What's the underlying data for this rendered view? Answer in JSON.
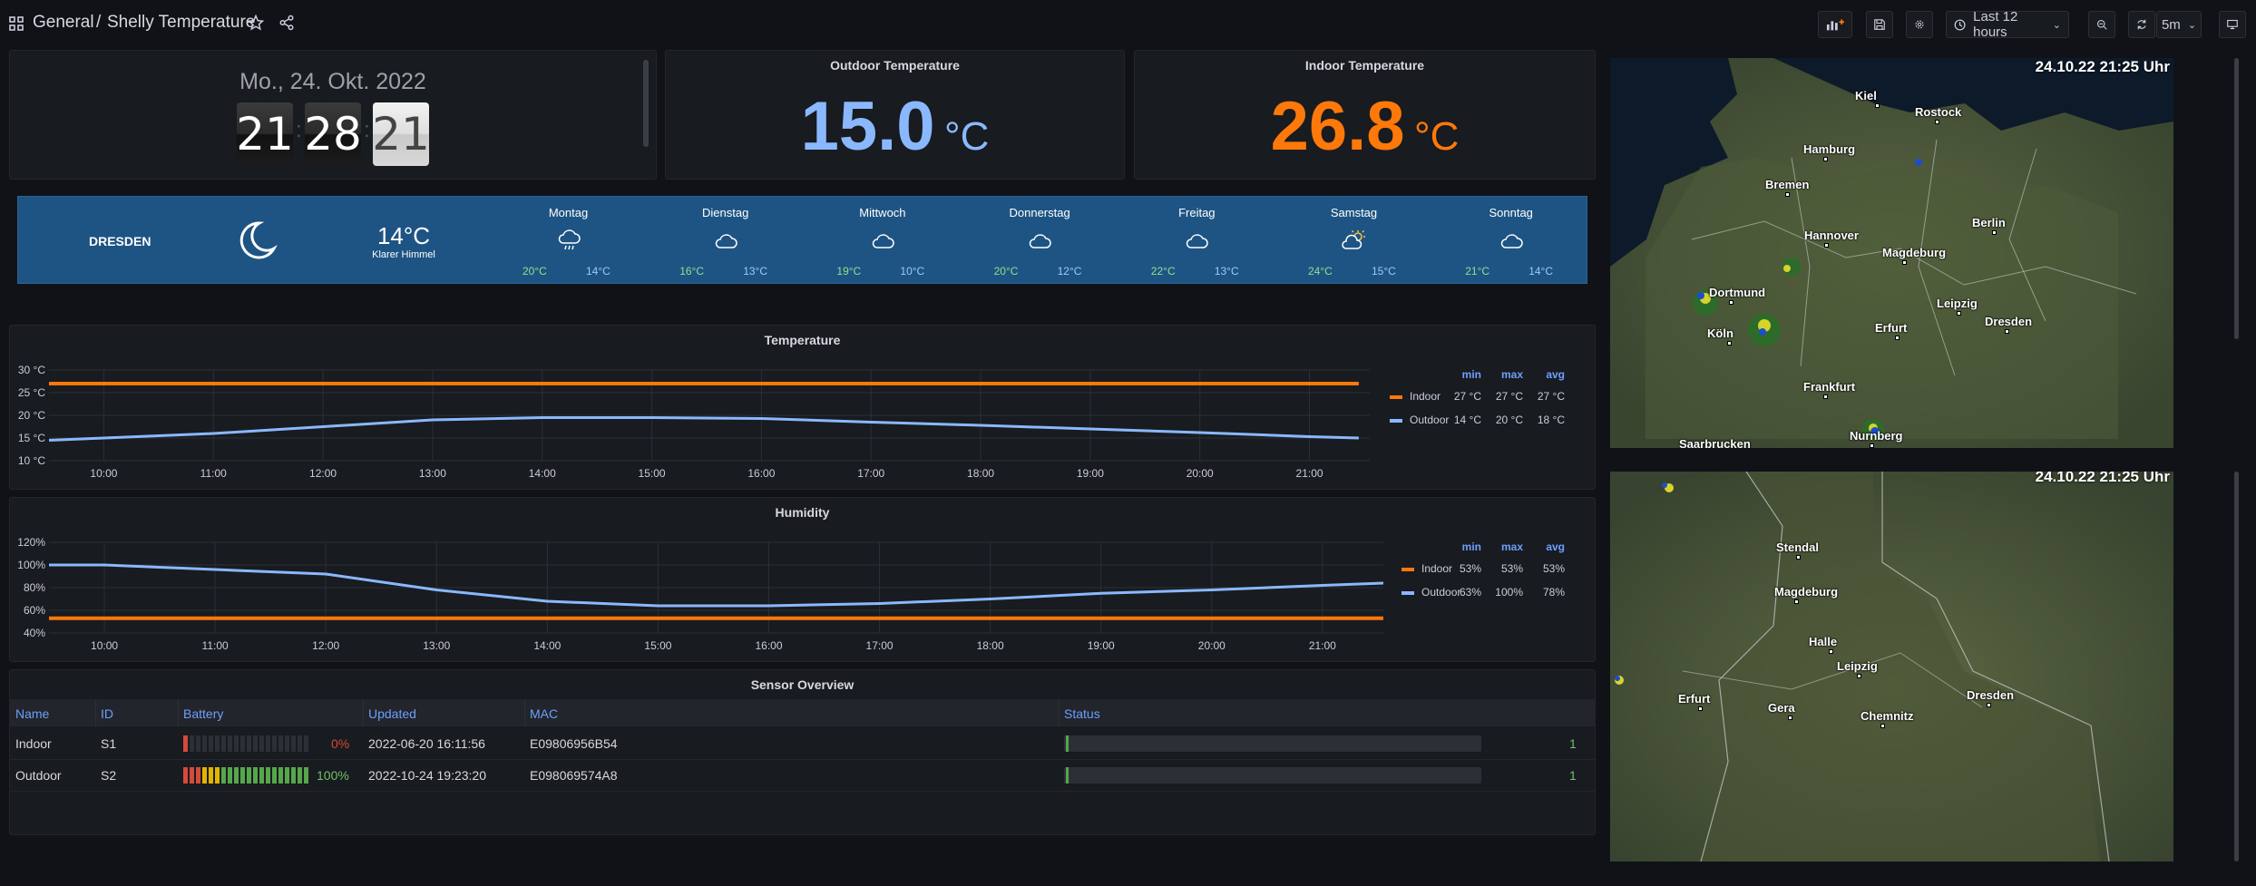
{
  "header": {
    "breadcrumb_folder": "General",
    "breadcrumb_sep": "/",
    "dashboard_title": "Shelly Temperature",
    "time_range": "Last 12 hours",
    "refresh": "5m"
  },
  "clock": {
    "date": "Mo., 24. Okt. 2022",
    "hours": "21",
    "minutes": "28",
    "seconds": "21",
    "sep": ":"
  },
  "outdoor": {
    "title": "Outdoor Temperature",
    "value": "15.0",
    "unit": "°C",
    "color": "#8ab8ff"
  },
  "indoor": {
    "title": "Indoor Temperature",
    "value": "26.8",
    "unit": "°C",
    "color": "#ff780a"
  },
  "weather": {
    "city": "DRESDEN",
    "current_temp": "14°C",
    "current_desc": "Klarer Himmel",
    "current_icon": "moon-icon",
    "days": [
      {
        "name": "Montag",
        "icon": "cloud-rain-icon",
        "hi": "20°C",
        "lo": "14°C"
      },
      {
        "name": "Dienstag",
        "icon": "cloud-icon",
        "hi": "16°C",
        "lo": "13°C"
      },
      {
        "name": "Mittwoch",
        "icon": "cloud-icon",
        "hi": "19°C",
        "lo": "10°C"
      },
      {
        "name": "Donnerstag",
        "icon": "cloud-icon",
        "hi": "20°C",
        "lo": "12°C"
      },
      {
        "name": "Freitag",
        "icon": "cloud-icon",
        "hi": "22°C",
        "lo": "13°C"
      },
      {
        "name": "Samstag",
        "icon": "sun-cloud-icon",
        "hi": "24°C",
        "lo": "15°C"
      },
      {
        "name": "Sonntag",
        "icon": "cloud-icon",
        "hi": "21°C",
        "lo": "14°C"
      }
    ]
  },
  "legend_cols": {
    "min": "min",
    "max": "max",
    "avg": "avg"
  },
  "temp_legend": [
    {
      "name": "Indoor",
      "min": "27 °C",
      "max": "27 °C",
      "avg": "27 °C",
      "color": "#ff780a"
    },
    {
      "name": "Outdoor",
      "min": "14 °C",
      "max": "20 °C",
      "avg": "18 °C",
      "color": "#8ab8ff"
    }
  ],
  "hum_legend": [
    {
      "name": "Indoor",
      "min": "53%",
      "max": "53%",
      "avg": "53%",
      "color": "#ff780a"
    },
    {
      "name": "Outdoor",
      "min": "63%",
      "max": "100%",
      "avg": "78%",
      "color": "#8ab8ff"
    }
  ],
  "chart_data": [
    {
      "type": "line",
      "title": "Temperature",
      "y_ticks": [
        "30 °C",
        "25 °C",
        "20 °C",
        "15 °C",
        "10 °C"
      ],
      "ylim": [
        10,
        30
      ],
      "x_ticks": [
        "10:00",
        "11:00",
        "12:00",
        "13:00",
        "14:00",
        "15:00",
        "16:00",
        "17:00",
        "18:00",
        "19:00",
        "20:00",
        "21:00"
      ],
      "x_hours": [
        9.5,
        10,
        11,
        12,
        13,
        14,
        15,
        16,
        17,
        18,
        19,
        20,
        21,
        21.45
      ],
      "series": [
        {
          "name": "Indoor",
          "color": "#ff780a",
          "values": [
            27,
            27,
            27,
            27,
            27,
            27,
            27,
            27,
            27,
            27,
            27,
            27,
            27,
            27
          ]
        },
        {
          "name": "Outdoor",
          "color": "#8ab8ff",
          "values": [
            14.5,
            15,
            16,
            17.5,
            19,
            19.5,
            19.5,
            19.3,
            18.5,
            17.8,
            17,
            16.2,
            15.3,
            15
          ]
        }
      ],
      "grid": true
    },
    {
      "type": "line",
      "title": "Humidity",
      "y_ticks": [
        "120%",
        "100%",
        "80%",
        "60%",
        "40%"
      ],
      "ylim": [
        40,
        120
      ],
      "x_ticks": [
        "10:00",
        "11:00",
        "12:00",
        "13:00",
        "14:00",
        "15:00",
        "16:00",
        "17:00",
        "18:00",
        "19:00",
        "20:00",
        "21:00"
      ],
      "x_hours": [
        9.5,
        10,
        11,
        12,
        13,
        14,
        15,
        16,
        17,
        18,
        19,
        20,
        21,
        21.55
      ],
      "series": [
        {
          "name": "Indoor",
          "color": "#ff780a",
          "values": [
            53,
            53,
            53,
            53,
            53,
            53,
            53,
            53,
            53,
            53,
            53,
            53,
            53,
            53
          ]
        },
        {
          "name": "Outdoor",
          "color": "#8ab8ff",
          "values": [
            100,
            100,
            96,
            92,
            78,
            68,
            64,
            64,
            66,
            70,
            75,
            78,
            82,
            84
          ]
        }
      ],
      "grid": true
    }
  ],
  "sensors": {
    "title": "Sensor Overview",
    "columns": [
      "Name",
      "ID",
      "Battery",
      "Updated",
      "MAC",
      "Status"
    ],
    "rows": [
      {
        "name": "Indoor",
        "id": "S1",
        "battery": 0,
        "battery_label": "0%",
        "updated": "2022-06-20 16:11:56",
        "mac": "E09806956B54",
        "status": "1"
      },
      {
        "name": "Outdoor",
        "id": "S2",
        "battery": 100,
        "battery_label": "100%",
        "updated": "2022-10-24 19:23:20",
        "mac": "E098069574A8",
        "status": "1"
      }
    ]
  },
  "maps": {
    "timestamp1": "24.10.22 21:25 Uhr",
    "timestamp2": "24.10.22 21:25 Uhr",
    "cities1": [
      "Kiel",
      "Rostock",
      "Hamburg",
      "Bremen",
      "Hannover",
      "Berlin",
      "Magdeburg",
      "Dortmund",
      "Leipzig",
      "Köln",
      "Erfurt",
      "Dresden",
      "Frankfurt",
      "Nurnberg",
      "Saarbrucken"
    ],
    "cities2": [
      "Stendal",
      "Magdeburg",
      "Halle",
      "Leipzig",
      "Dresden",
      "Erfurt",
      "Gera",
      "Chemnitz"
    ]
  }
}
